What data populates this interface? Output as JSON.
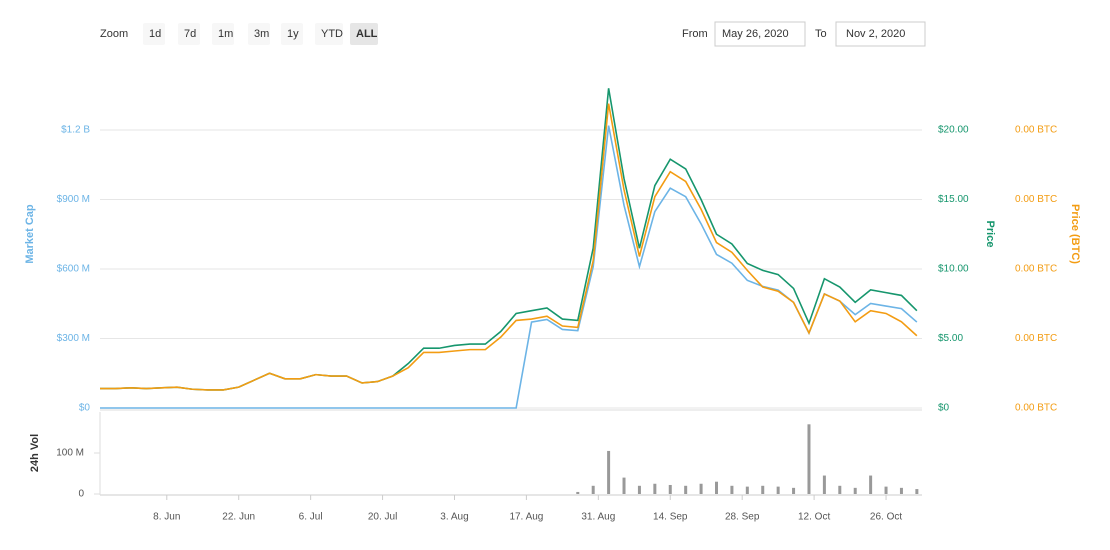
{
  "toolbar": {
    "zoom_label": "Zoom",
    "buttons": [
      "1d",
      "7d",
      "1m",
      "3m",
      "1y",
      "YTD",
      "ALL"
    ],
    "active": "ALL",
    "from_label": "From",
    "from": "May 26, 2020",
    "to_label": "To",
    "to": "Nov 2, 2020"
  },
  "chart_data": [
    {
      "type": "line",
      "ylabel": "Market Cap",
      "y2label": "Price",
      "y3label": "Price (BTC)",
      "x": [
        "2020-05-26",
        "2020-05-29",
        "2020-06-01",
        "2020-06-04",
        "2020-06-07",
        "2020-06-10",
        "2020-06-13",
        "2020-06-16",
        "2020-06-19",
        "2020-06-22",
        "2020-06-25",
        "2020-06-28",
        "2020-07-01",
        "2020-07-04",
        "2020-07-07",
        "2020-07-10",
        "2020-07-13",
        "2020-07-16",
        "2020-07-19",
        "2020-07-22",
        "2020-07-25",
        "2020-07-28",
        "2020-07-31",
        "2020-08-03",
        "2020-08-06",
        "2020-08-09",
        "2020-08-12",
        "2020-08-15",
        "2020-08-18",
        "2020-08-21",
        "2020-08-24",
        "2020-08-27",
        "2020-08-30",
        "2020-09-02",
        "2020-09-05",
        "2020-09-08",
        "2020-09-11",
        "2020-09-14",
        "2020-09-17",
        "2020-09-20",
        "2020-09-23",
        "2020-09-26",
        "2020-09-29",
        "2020-10-02",
        "2020-10-05",
        "2020-10-08",
        "2020-10-11",
        "2020-10-14",
        "2020-10-17",
        "2020-10-20",
        "2020-10-23",
        "2020-10-26",
        "2020-10-29",
        "2020-11-01"
      ],
      "xlim": [
        "2020-05-26",
        "2020-11-02"
      ],
      "xticks": [
        {
          "value": "2020-06-08",
          "label": "8. Jun"
        },
        {
          "value": "2020-06-22",
          "label": "22. Jun"
        },
        {
          "value": "2020-07-06",
          "label": "6. Jul"
        },
        {
          "value": "2020-07-20",
          "label": "20. Jul"
        },
        {
          "value": "2020-08-03",
          "label": "3. Aug"
        },
        {
          "value": "2020-08-17",
          "label": "17. Aug"
        },
        {
          "value": "2020-08-31",
          "label": "31. Aug"
        },
        {
          "value": "2020-09-14",
          "label": "14. Sep"
        },
        {
          "value": "2020-09-28",
          "label": "28. Sep"
        },
        {
          "value": "2020-10-12",
          "label": "12. Oct"
        },
        {
          "value": "2020-10-26",
          "label": "26. Oct"
        }
      ],
      "ylim": [
        0,
        1500000000
      ],
      "yticks": [
        {
          "value": 0,
          "label": "$0"
        },
        {
          "value": 300000000,
          "label": "$300 M"
        },
        {
          "value": 600000000,
          "label": "$600 M"
        },
        {
          "value": 900000000,
          "label": "$900 M"
        },
        {
          "value": 1200000000,
          "label": "$1.2 B"
        }
      ],
      "y2lim": [
        0,
        25
      ],
      "y2ticks": [
        {
          "value": 0,
          "label": "$0"
        },
        {
          "value": 5,
          "label": "$5.00"
        },
        {
          "value": 10,
          "label": "$10.00"
        },
        {
          "value": 15,
          "label": "$15.00"
        },
        {
          "value": 20,
          "label": "$20.00"
        }
      ],
      "y3lim": [
        0,
        0.0025
      ],
      "y3ticks": [
        {
          "value": 0,
          "label": "0.00 BTC"
        },
        {
          "value": 0.0005,
          "label": "0.00 BTC"
        },
        {
          "value": 0.001,
          "label": "0.00 BTC"
        },
        {
          "value": 0.0015,
          "label": "0.00 BTC"
        },
        {
          "value": 0.002,
          "label": "0.00 BTC"
        }
      ],
      "grid": true,
      "series": [
        {
          "axis": "y",
          "color": "#6cb4e6",
          "values": [
            0,
            0,
            0,
            0,
            0,
            0,
            0,
            0,
            0,
            0,
            0,
            0,
            0,
            0,
            0,
            0,
            0,
            0,
            0,
            0,
            0,
            0,
            0,
            0,
            0,
            0,
            0,
            0,
            371000000,
            382000000,
            339000000,
            334000000,
            610000000,
            1219000000,
            875000000,
            610000000,
            848000000,
            949000000,
            912000000,
            795000000,
            663000000,
            625000000,
            551000000,
            525000000,
            509000000,
            456000000,
            323000000,
            493000000,
            461000000,
            403000000,
            451000000,
            440000000,
            429000000,
            371000000
          ]
        },
        {
          "axis": "y2",
          "color": "#16966d",
          "values": [
            1.4,
            1.4,
            1.45,
            1.4,
            1.45,
            1.5,
            1.35,
            1.3,
            1.3,
            1.5,
            2.0,
            2.5,
            2.1,
            2.1,
            2.4,
            2.3,
            2.3,
            1.8,
            1.9,
            2.3,
            3.2,
            4.3,
            4.3,
            4.5,
            4.6,
            4.6,
            5.5,
            6.8,
            7.0,
            7.2,
            6.4,
            6.3,
            11.5,
            23.0,
            16.5,
            11.5,
            16.0,
            17.9,
            17.2,
            15.0,
            12.5,
            11.8,
            10.4,
            9.9,
            9.6,
            8.6,
            6.1,
            9.3,
            8.7,
            7.6,
            8.5,
            8.3,
            8.1,
            7.0
          ]
        },
        {
          "axis": "y3",
          "color": "#f39c12",
          "values": [
            0.00014,
            0.00014,
            0.000145,
            0.00014,
            0.000145,
            0.00015,
            0.000135,
            0.00013,
            0.00013,
            0.00015,
            0.0002,
            0.00025,
            0.00021,
            0.00021,
            0.00024,
            0.00023,
            0.00023,
            0.00018,
            0.00019,
            0.00023,
            0.00029,
            0.0004,
            0.0004,
            0.00041,
            0.00042,
            0.00042,
            0.00051,
            0.00063,
            0.00064,
            0.00066,
            0.00059,
            0.00058,
            0.00106,
            0.00219,
            0.00157,
            0.00109,
            0.00152,
            0.0017,
            0.00163,
            0.00143,
            0.00119,
            0.00112,
            0.00099,
            0.00087,
            0.00084,
            0.00076,
            0.00054,
            0.00082,
            0.00077,
            0.00062,
            0.0007,
            0.00068,
            0.00062,
            0.00052
          ]
        }
      ]
    },
    {
      "type": "bar",
      "ylabel": "24h Vol",
      "color": "#999999",
      "ylim": [
        0,
        200000000
      ],
      "yticks": [
        0,
        {
          "value": 100000000,
          "label": "100 M"
        }
      ],
      "values": [
        0,
        0,
        0,
        0,
        0,
        0,
        0,
        0,
        0,
        0,
        0,
        0,
        0,
        0,
        0,
        0,
        0,
        0,
        0,
        0,
        0,
        0,
        0,
        0,
        0,
        0,
        0,
        0,
        0,
        0,
        0,
        5000000,
        20000000,
        105000000,
        40000000,
        20000000,
        25000000,
        22000000,
        20000000,
        25000000,
        30000000,
        20000000,
        18000000,
        20000000,
        18000000,
        15000000,
        170000000,
        45000000,
        20000000,
        15000000,
        45000000,
        18000000,
        15000000,
        12000000
      ]
    }
  ]
}
